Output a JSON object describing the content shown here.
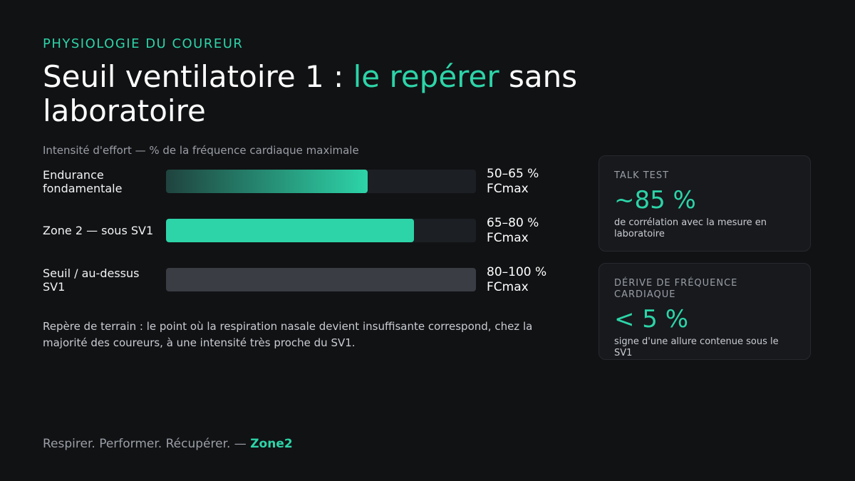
{
  "kicker": "PHYSIOLOGIE DU COUREUR",
  "title": {
    "before": "Seuil ventilatoire 1 : ",
    "highlight": "le repérer",
    "after": " sans laboratoire"
  },
  "chart_data": {
    "type": "bar",
    "orientation": "horizontal",
    "subtitle": "Intensité d'effort — % de la fréquence cardiaque maximale",
    "categories": [
      "Endurance fondamentale",
      "Zone 2 — sous SV1",
      "Seuil / au-dessus SV1"
    ],
    "values": [
      65,
      80,
      100
    ],
    "range_labels": [
      "50–65 % FCmax",
      "65–80 % FCmax",
      "80–100 % FCmax"
    ],
    "xlim": [
      0,
      100
    ],
    "colors": [
      "#2dd4a8",
      "#2dd4a8",
      "#3a3d44"
    ],
    "fill_styles": [
      "gradient",
      "solid",
      "solid"
    ]
  },
  "note": "Repère de terrain : le point où la respiration nasale devient insuffisante correspond, chez la majorité des coureurs, à une intensité très proche du SV1.",
  "cards": [
    {
      "label": "TALK TEST",
      "value": "~85 %",
      "caption": "de corrélation avec la mesure en laboratoire"
    },
    {
      "label": "DÉRIVE DE FRÉQUENCE CARDIAQUE",
      "value": "< 5 %",
      "caption": "signe d'une allure contenue sous le SV1"
    }
  ],
  "footer": {
    "text": "Respirer. Performer. Récupérer. — ",
    "brand": "Zone2"
  }
}
